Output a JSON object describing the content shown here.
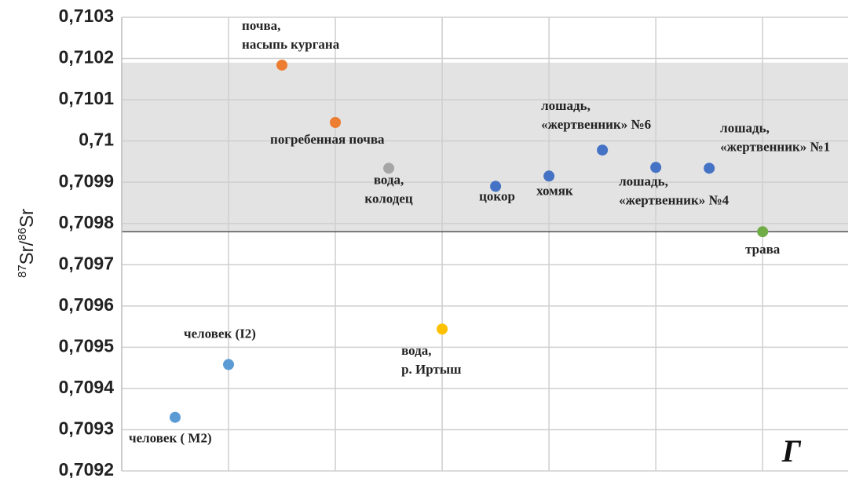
{
  "chart_data": {
    "type": "scatter",
    "ylabel": [
      "87",
      "Sr/",
      "86",
      "Sr"
    ],
    "annotation": "Г",
    "ylim": [
      0.7092,
      0.7103
    ],
    "yticks": [
      {
        "value": 0.7092,
        "label": "0,7092"
      },
      {
        "value": 0.7093,
        "label": "0,7093"
      },
      {
        "value": 0.7094,
        "label": "0,7094"
      },
      {
        "value": 0.7095,
        "label": "0,7095"
      },
      {
        "value": 0.7096,
        "label": "0,7096"
      },
      {
        "value": 0.7097,
        "label": "0,7097"
      },
      {
        "value": 0.7098,
        "label": "0,7098"
      },
      {
        "value": 0.7099,
        "label": "0,7099"
      },
      {
        "value": 0.71,
        "label": "0,71"
      },
      {
        "value": 0.7101,
        "label": "0,7101"
      },
      {
        "value": 0.7102,
        "label": "0,7102"
      },
      {
        "value": 0.7103,
        "label": "0,7103"
      }
    ],
    "xlim": [
      0,
      6.8
    ],
    "xticks": [
      1,
      2,
      3,
      4,
      5,
      6
    ],
    "grid": true,
    "band": [
      0.70978,
      0.71019
    ],
    "points": [
      {
        "label": [
          "человек ( М2)"
        ],
        "x": 0.5,
        "y": 0.70933,
        "color": "#5b9bd5"
      },
      {
        "label": [
          "человек (I2)"
        ],
        "x": 1,
        "y": 0.709458,
        "color": "#5b9bd5"
      },
      {
        "label": [
          "почва,",
          "насыпь кургана"
        ],
        "x": 1.5,
        "y": 0.710184,
        "color": "#ed7d31"
      },
      {
        "label": [
          "погребенная почва"
        ],
        "x": 2,
        "y": 0.710045,
        "color": "#ed7d31"
      },
      {
        "label": [
          "вода,",
          "колодец"
        ],
        "x": 2.5,
        "y": 0.709934,
        "color": "#a5a5a5"
      },
      {
        "label": [
          "вода,",
          "р. Иртыш"
        ],
        "x": 3,
        "y": 0.709544,
        "color": "#ffc000"
      },
      {
        "label": [
          "цокор"
        ],
        "x": 3.5,
        "y": 0.70989,
        "color": "#4472c4"
      },
      {
        "label": [
          "хомяк"
        ],
        "x": 4,
        "y": 0.709915,
        "color": "#4472c4"
      },
      {
        "label": [
          "лошадь,",
          "«жертвенник» №6"
        ],
        "x": 4.5,
        "y": 0.709978,
        "color": "#4472c4"
      },
      {
        "label": [
          "лошадь,",
          "«жертвенник» №4"
        ],
        "x": 5,
        "y": 0.709936,
        "color": "#4472c4"
      },
      {
        "label": [
          "лошадь,",
          "«жертвенник» №1"
        ],
        "x": 5.5,
        "y": 0.709934,
        "color": "#4472c4"
      },
      {
        "label": [
          "трава"
        ],
        "x": 6,
        "y": 0.70978,
        "color": "#70ad47"
      }
    ]
  }
}
